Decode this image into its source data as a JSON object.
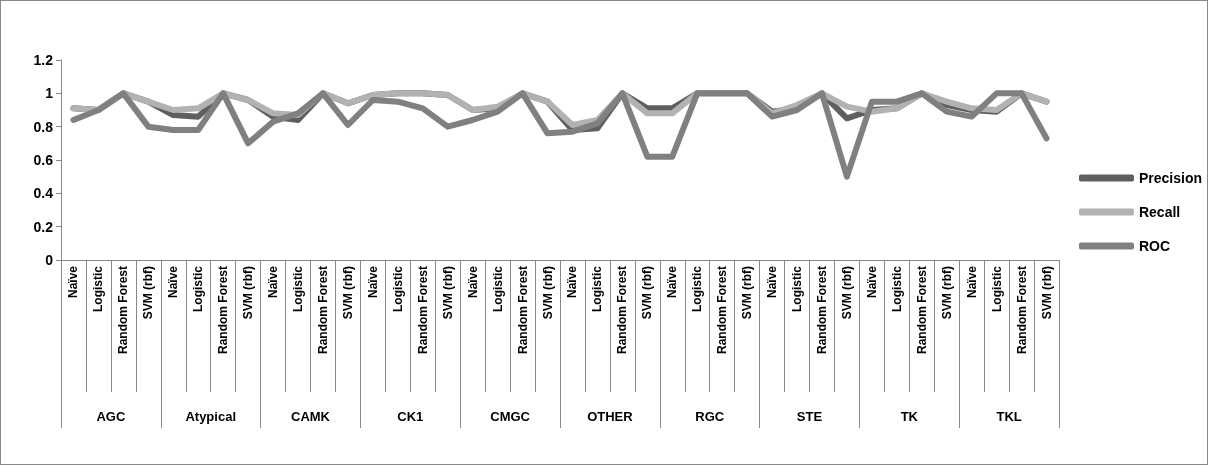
{
  "chart_data": {
    "type": "line",
    "categories": [
      "Naïve",
      "Logistic",
      "Random Forest",
      "SVM (rbf)",
      "Naïve",
      "Logistic",
      "Random Forest",
      "SVM (rbf)",
      "Naïve",
      "Logistic",
      "Random Forest",
      "SVM (rbf)",
      "Naïve",
      "Logistic",
      "Random Forest",
      "SVM (rbf)",
      "Naïve",
      "Logistic",
      "Random Forest",
      "SVM (rbf)",
      "Naïve",
      "Logistic",
      "Random Forest",
      "SVM (rbf)",
      "Naïve",
      "Logistic",
      "Random Forest",
      "SVM (rbf)",
      "Naïve",
      "Logistic",
      "Random Forest",
      "SVM (rbf)",
      "Naïve",
      "Logistic",
      "Random Forest",
      "SVM (rbf)",
      "Naïve",
      "Logistic",
      "Random Forest",
      "SVM (rbf)"
    ],
    "series": [
      {
        "name": "Precision",
        "color": "#5f5f5f",
        "values": [
          0.91,
          0.9,
          1.0,
          0.95,
          0.87,
          0.86,
          1.0,
          0.96,
          0.86,
          0.84,
          1.0,
          0.94,
          0.99,
          1.0,
          1.0,
          0.99,
          0.9,
          0.91,
          1.0,
          0.95,
          0.78,
          0.79,
          1.0,
          0.91,
          0.91,
          1.0,
          1.0,
          1.0,
          0.89,
          0.91,
          1.0,
          0.85,
          0.9,
          0.91,
          1.0,
          0.93,
          0.9,
          0.89,
          1.0,
          0.95
        ]
      },
      {
        "name": "Recall",
        "color": "#b2b2b2",
        "values": [
          0.91,
          0.9,
          1.0,
          0.95,
          0.9,
          0.91,
          1.0,
          0.96,
          0.88,
          0.87,
          1.0,
          0.94,
          0.99,
          1.0,
          1.0,
          0.99,
          0.9,
          0.92,
          1.0,
          0.95,
          0.81,
          0.84,
          1.0,
          0.88,
          0.88,
          1.0,
          1.0,
          1.0,
          0.88,
          0.93,
          1.0,
          0.92,
          0.89,
          0.91,
          1.0,
          0.95,
          0.91,
          0.9,
          1.0,
          0.95
        ]
      },
      {
        "name": "ROC",
        "color": "#808080",
        "values": [
          0.84,
          0.9,
          1.0,
          0.8,
          0.78,
          0.78,
          1.0,
          0.7,
          0.83,
          0.88,
          1.0,
          0.81,
          0.96,
          0.95,
          0.91,
          0.8,
          0.84,
          0.89,
          1.0,
          0.76,
          0.77,
          0.82,
          1.0,
          0.62,
          0.62,
          1.0,
          1.0,
          1.0,
          0.86,
          0.9,
          1.0,
          0.5,
          0.95,
          0.95,
          1.0,
          0.89,
          0.86,
          1.0,
          1.0,
          0.73
        ]
      }
    ],
    "annotations": [
      "AGC",
      "Atypical",
      "CAMK",
      "CK1",
      "CMGC",
      "OTHER",
      "RGC",
      "STE",
      "TK",
      "TKL"
    ],
    "ylim": [
      0,
      1.2
    ],
    "yticks": [
      0,
      0.2,
      0.4,
      0.6,
      0.8,
      1,
      1.2
    ],
    "grid": false,
    "legend": "right",
    "marker": "none",
    "line_style": "solid"
  }
}
